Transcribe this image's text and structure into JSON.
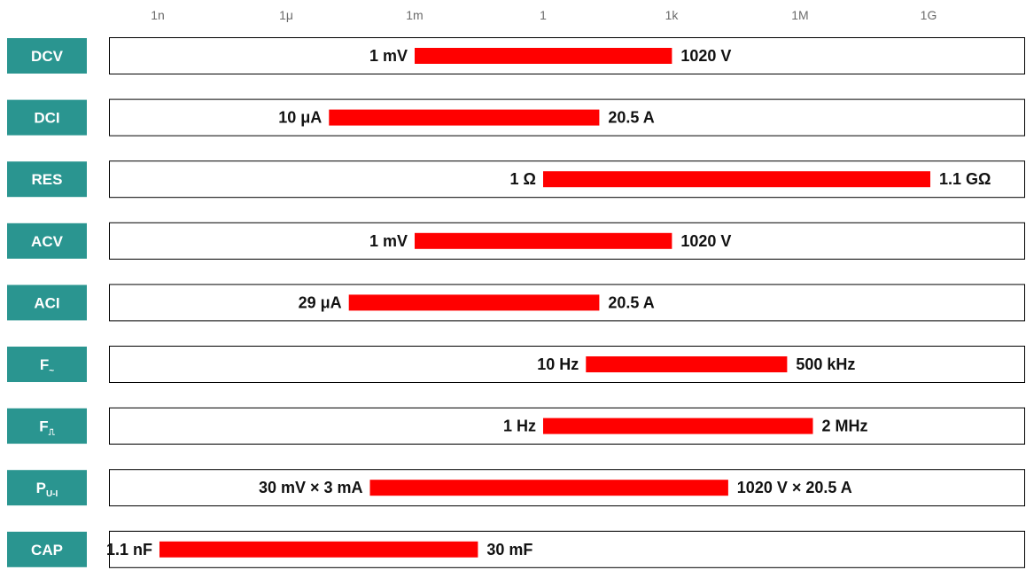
{
  "chart_data": {
    "type": "bar",
    "orientation": "horizontal",
    "scale": "log",
    "axis_ticks": [
      "1n",
      "1μ",
      "1m",
      "1",
      "1k",
      "1M",
      "1G"
    ],
    "axis_tick_values": [
      1e-09,
      1e-06,
      0.001,
      1,
      1000.0,
      1000000.0,
      1000000000.0
    ],
    "xlim": [
      1e-10,
      10000000000.0
    ],
    "colors": {
      "label_bg": "#2a9590",
      "bar": "#ff0000",
      "tick_text": "#6b6b6b"
    },
    "rows": [
      {
        "label": "DCV",
        "sub": "",
        "min": 0.001,
        "max": 1020,
        "min_label": "1 mV",
        "max_label": "1020 V"
      },
      {
        "label": "DCI",
        "sub": "",
        "min": 1e-05,
        "max": 20.5,
        "min_label": "10 μA",
        "max_label": "20.5 A"
      },
      {
        "label": "RES",
        "sub": "",
        "min": 1,
        "max": 1100000000.0,
        "min_label": "1 Ω",
        "max_label": "1.1 GΩ"
      },
      {
        "label": "ACV",
        "sub": "",
        "min": 0.001,
        "max": 1020,
        "min_label": "1 mV",
        "max_label": "1020 V"
      },
      {
        "label": "ACI",
        "sub": "",
        "min": 2.9e-05,
        "max": 20.5,
        "min_label": "29 μA",
        "max_label": "20.5 A"
      },
      {
        "label": "F",
        "sub": "~",
        "min": 10,
        "max": 500000,
        "min_label": "10 Hz",
        "max_label": "500 kHz"
      },
      {
        "label": "F",
        "sub": "⎍",
        "min": 1,
        "max": 2000000,
        "min_label": "1 Hz",
        "max_label": "2 MHz"
      },
      {
        "label": "P",
        "sub": "U-I",
        "min": 9e-05,
        "max": 20910,
        "min_label": "30 mV × 3 mA",
        "max_label": "1020 V × 20.5 A"
      },
      {
        "label": "CAP",
        "sub": "",
        "min": 1.1e-09,
        "max": 0.03,
        "min_label": "1.1 nF",
        "max_label": "30 mF"
      }
    ]
  }
}
